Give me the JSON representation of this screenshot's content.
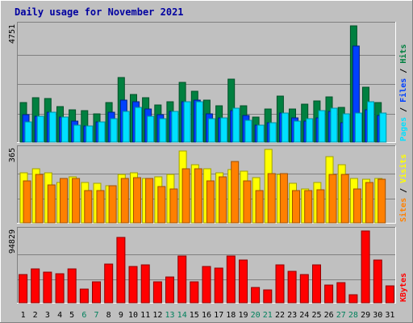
{
  "title": "Daily usage for November 2021",
  "colors": {
    "background": "#c0c0c0",
    "panel": "#c0c0c0",
    "title": "#0000a0",
    "hits": "#008040",
    "files": "#0040ff",
    "pages": "#00e0ff",
    "visits": "#ffff00",
    "sites": "#ff8000",
    "kbytes": "#ff0000",
    "weekend_label": "#00805c",
    "weekday_label": "#000000",
    "max_label": "#000000"
  },
  "chart_data": [
    {
      "type": "bar",
      "name": "hits-files-pages",
      "y_max_label": "4751",
      "ylim": [
        0,
        4751
      ],
      "right_labels": [
        "Pages",
        "Files",
        "Hits"
      ],
      "categories": [
        "1",
        "2",
        "3",
        "4",
        "5",
        "6",
        "7",
        "8",
        "9",
        "10",
        "11",
        "12",
        "13",
        "14",
        "15",
        "16",
        "17",
        "18",
        "19",
        "20",
        "21",
        "22",
        "23",
        "24",
        "25",
        "26",
        "27",
        "28",
        "29",
        "30",
        "31"
      ],
      "series": [
        {
          "name": "Hits",
          "values": [
            1620,
            1810,
            1790,
            1460,
            1320,
            1300,
            1150,
            1620,
            2650,
            1950,
            1800,
            1510,
            1650,
            2450,
            2070,
            1710,
            1480,
            2560,
            1490,
            1030,
            1340,
            1880,
            1360,
            1560,
            1670,
            1840,
            1410,
            4751,
            2260,
            1620,
            0
          ]
        },
        {
          "name": "Files",
          "values": [
            1110,
            1040,
            1220,
            1020,
            850,
            650,
            830,
            1220,
            1730,
            1650,
            1350,
            1130,
            1270,
            1660,
            1700,
            1140,
            1000,
            1280,
            1090,
            690,
            800,
            1200,
            980,
            850,
            980,
            1250,
            800,
            3920,
            1320,
            1100,
            0
          ]
        },
        {
          "name": "Pages",
          "values": [
            830,
            1040,
            1220,
            1020,
            690,
            650,
            820,
            950,
            1250,
            1430,
            1050,
            970,
            1270,
            1660,
            1640,
            960,
            1000,
            1400,
            900,
            690,
            800,
            1200,
            850,
            960,
            1300,
            1380,
            1150,
            1200,
            1640,
            1180,
            0
          ]
        }
      ]
    },
    {
      "type": "bar",
      "name": "visits-sites",
      "y_max_label": "365",
      "ylim": [
        0,
        365
      ],
      "right_labels": [
        "Sites",
        "Visits"
      ],
      "categories": [
        "1",
        "2",
        "3",
        "4",
        "5",
        "6",
        "7",
        "8",
        "9",
        "10",
        "11",
        "12",
        "13",
        "14",
        "15",
        "16",
        "17",
        "18",
        "19",
        "20",
        "21",
        "22",
        "23",
        "24",
        "25",
        "26",
        "27",
        "28",
        "29",
        "30",
        "31"
      ],
      "series": [
        {
          "name": "Visits",
          "values": [
            250,
            270,
            250,
            200,
            230,
            200,
            195,
            185,
            240,
            250,
            220,
            230,
            240,
            355,
            290,
            270,
            250,
            265,
            255,
            225,
            365,
            240,
            195,
            170,
            200,
            330,
            290,
            220,
            215,
            220,
            0
          ]
        },
        {
          "name": "Sites",
          "values": [
            210,
            240,
            190,
            220,
            220,
            160,
            160,
            185,
            220,
            225,
            220,
            180,
            170,
            270,
            270,
            210,
            230,
            305,
            210,
            160,
            245,
            245,
            160,
            160,
            165,
            240,
            240,
            170,
            200,
            215,
            0
          ]
        }
      ]
    },
    {
      "type": "bar",
      "name": "kbytes",
      "y_max_label": "94829",
      "ylim": [
        0,
        94829
      ],
      "right_labels": [
        "KBytes"
      ],
      "categories": [
        "1",
        "2",
        "3",
        "4",
        "5",
        "6",
        "7",
        "8",
        "9",
        "10",
        "11",
        "12",
        "13",
        "14",
        "15",
        "16",
        "17",
        "18",
        "19",
        "20",
        "21",
        "22",
        "23",
        "24",
        "25",
        "26",
        "27",
        "28",
        "29",
        "30",
        "31"
      ],
      "series": [
        {
          "name": "KBytes",
          "values": [
            37000,
            45000,
            40000,
            38500,
            44500,
            18000,
            27500,
            51000,
            86000,
            48000,
            50000,
            28000,
            34000,
            62000,
            28000,
            48000,
            46000,
            62000,
            56500,
            20000,
            17500,
            50000,
            42000,
            37000,
            50000,
            23000,
            27000,
            11000,
            94829,
            57000,
            22000
          ]
        }
      ]
    }
  ],
  "x_labels": [
    "1",
    "2",
    "3",
    "4",
    "5",
    "6",
    "7",
    "8",
    "9",
    "10",
    "11",
    "12",
    "13",
    "14",
    "15",
    "16",
    "17",
    "18",
    "19",
    "20",
    "21",
    "22",
    "23",
    "24",
    "25",
    "26",
    "27",
    "28",
    "29",
    "30",
    "31"
  ],
  "weekend_days": [
    "6",
    "7",
    "13",
    "14",
    "20",
    "21",
    "27",
    "28"
  ]
}
